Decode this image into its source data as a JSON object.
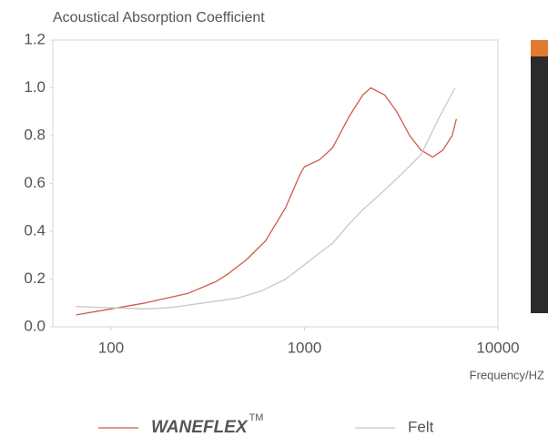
{
  "chart_data": {
    "type": "line",
    "title": "Acoustical Absorption Coefficient",
    "x_label": "Frequency/HZ",
    "x_scale": "log",
    "xlim": [
      50,
      10000
    ],
    "xticks": [
      100,
      1000,
      10000
    ],
    "ylim": [
      0,
      1.2
    ],
    "yticks": [
      {
        "value": 0,
        "label": "0.0"
      },
      0.2,
      0.4,
      0.6,
      0.8,
      {
        "value": 1,
        "label": "1.0"
      },
      1.2
    ],
    "grid": false,
    "series": [
      {
        "name": "WANEFLEX",
        "trademark": "TM",
        "color": "#cf5a4c",
        "x": [
          66,
          100,
          150,
          250,
          350,
          400,
          500,
          630,
          800,
          950,
          1000,
          1200,
          1400,
          1700,
          2000,
          2200,
          2600,
          3000,
          3500,
          4000,
          4600,
          5200,
          5800,
          6100
        ],
        "values": [
          0.05,
          0.075,
          0.1,
          0.14,
          0.19,
          0.22,
          0.28,
          0.36,
          0.5,
          0.64,
          0.67,
          0.7,
          0.75,
          0.88,
          0.97,
          1.0,
          0.97,
          0.9,
          0.8,
          0.74,
          0.71,
          0.74,
          0.8,
          0.87
        ]
      },
      {
        "name": "Felt",
        "color": "#c8c8c8",
        "x": [
          66,
          100,
          150,
          200,
          300,
          450,
          600,
          800,
          1000,
          1200,
          1400,
          1700,
          2000,
          2500,
          3000,
          4000,
          5000,
          6000
        ],
        "values": [
          0.085,
          0.08,
          0.075,
          0.08,
          0.1,
          0.12,
          0.15,
          0.2,
          0.26,
          0.31,
          0.35,
          0.43,
          0.49,
          0.56,
          0.62,
          0.72,
          0.88,
          1.0
        ]
      }
    ]
  }
}
